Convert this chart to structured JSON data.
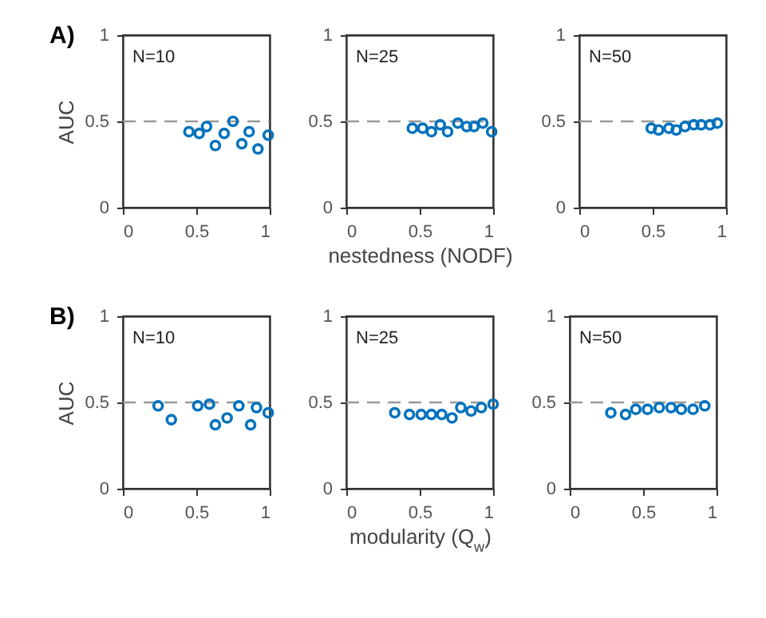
{
  "chart_data": [
    {
      "type": "scatter",
      "title": "A)",
      "ylabel": "AUC",
      "annotations": [
        "N=10"
      ],
      "marker": "circle",
      "xlim": [
        0,
        1
      ],
      "ylim": [
        0,
        1
      ],
      "xticks": [
        0,
        0.5,
        1
      ],
      "yticks": [
        0,
        0.5,
        1
      ],
      "ref_lines": [
        {
          "axis": "y",
          "value": 0.5,
          "color": "#999999",
          "line_style": "dashed"
        }
      ],
      "series": [
        {
          "color": "#0072bd",
          "x": [
            0.45,
            0.52,
            0.57,
            0.63,
            0.69,
            0.75,
            0.81,
            0.86,
            0.92,
            0.99
          ],
          "values": [
            0.44,
            0.43,
            0.47,
            0.36,
            0.43,
            0.5,
            0.37,
            0.44,
            0.34,
            0.42
          ]
        }
      ]
    },
    {
      "type": "scatter",
      "xlabel": "nestedness (NODF)",
      "annotations": [
        "N=25"
      ],
      "marker": "circle",
      "xlim": [
        0,
        1
      ],
      "ylim": [
        0,
        1
      ],
      "xticks": [
        0,
        0.5,
        1
      ],
      "yticks": [
        0,
        0.5,
        1
      ],
      "ref_lines": [
        {
          "axis": "y",
          "value": 0.5,
          "color": "#999999",
          "line_style": "dashed"
        }
      ],
      "series": [
        {
          "color": "#0072bd",
          "x": [
            0.45,
            0.52,
            0.58,
            0.64,
            0.69,
            0.76,
            0.82,
            0.87,
            0.93,
            0.99
          ],
          "values": [
            0.46,
            0.46,
            0.44,
            0.48,
            0.44,
            0.49,
            0.47,
            0.47,
            0.49,
            0.44
          ]
        }
      ]
    },
    {
      "type": "scatter",
      "annotations": [
        "N=50"
      ],
      "marker": "circle",
      "xlim": [
        0,
        1
      ],
      "ylim": [
        0,
        1
      ],
      "xticks": [
        0,
        0.5,
        1
      ],
      "yticks": [
        0,
        0.5,
        1
      ],
      "ref_lines": [
        {
          "axis": "y",
          "value": 0.5,
          "color": "#999999",
          "line_style": "dashed"
        }
      ],
      "series": [
        {
          "color": "#0072bd",
          "x": [
            0.49,
            0.54,
            0.61,
            0.66,
            0.72,
            0.78,
            0.83,
            0.89,
            0.94
          ],
          "values": [
            0.46,
            0.45,
            0.46,
            0.45,
            0.47,
            0.48,
            0.48,
            0.48,
            0.49
          ]
        }
      ]
    },
    {
      "type": "scatter",
      "title": "B)",
      "ylabel": "AUC",
      "annotations": [
        "N=10"
      ],
      "marker": "circle",
      "xlim": [
        0,
        1
      ],
      "ylim": [
        0,
        1
      ],
      "xticks": [
        0,
        0.5,
        1
      ],
      "yticks": [
        0,
        0.5,
        1
      ],
      "ref_lines": [
        {
          "axis": "y",
          "value": 0.5,
          "color": "#999999",
          "line_style": "dashed"
        }
      ],
      "series": [
        {
          "color": "#0072bd",
          "x": [
            0.24,
            0.33,
            0.51,
            0.59,
            0.63,
            0.71,
            0.79,
            0.87,
            0.91,
            0.99
          ],
          "values": [
            0.48,
            0.4,
            0.48,
            0.49,
            0.37,
            0.41,
            0.48,
            0.37,
            0.47,
            0.44
          ]
        }
      ]
    },
    {
      "type": "scatter",
      "xlabel": "modularity (Q$_{w}$)",
      "annotations": [
        "N=25"
      ],
      "marker": "circle",
      "xlim": [
        0,
        1
      ],
      "ylim": [
        0,
        1
      ],
      "xticks": [
        0,
        0.5,
        1
      ],
      "yticks": [
        0,
        0.5,
        1
      ],
      "ref_lines": [
        {
          "axis": "y",
          "value": 0.5,
          "color": "#999999",
          "line_style": "dashed"
        }
      ],
      "series": [
        {
          "color": "#0072bd",
          "x": [
            0.33,
            0.43,
            0.51,
            0.58,
            0.65,
            0.72,
            0.78,
            0.85,
            0.92,
            1.0
          ],
          "values": [
            0.44,
            0.43,
            0.43,
            0.43,
            0.43,
            0.41,
            0.47,
            0.45,
            0.47,
            0.49
          ]
        }
      ]
    },
    {
      "type": "scatter",
      "annotations": [
        "N=50"
      ],
      "marker": "circle",
      "xlim": [
        0,
        1
      ],
      "ylim": [
        0,
        1
      ],
      "xticks": [
        0,
        0.5,
        1
      ],
      "yticks": [
        0,
        0.5,
        1
      ],
      "ref_lines": [
        {
          "axis": "y",
          "value": 0.5,
          "color": "#999999",
          "line_style": "dashed"
        }
      ],
      "series": [
        {
          "color": "#0072bd",
          "x": [
            0.28,
            0.38,
            0.45,
            0.53,
            0.61,
            0.69,
            0.76,
            0.84,
            0.92
          ],
          "values": [
            0.44,
            0.43,
            0.46,
            0.46,
            0.47,
            0.47,
            0.46,
            0.46,
            0.48
          ]
        }
      ]
    }
  ]
}
